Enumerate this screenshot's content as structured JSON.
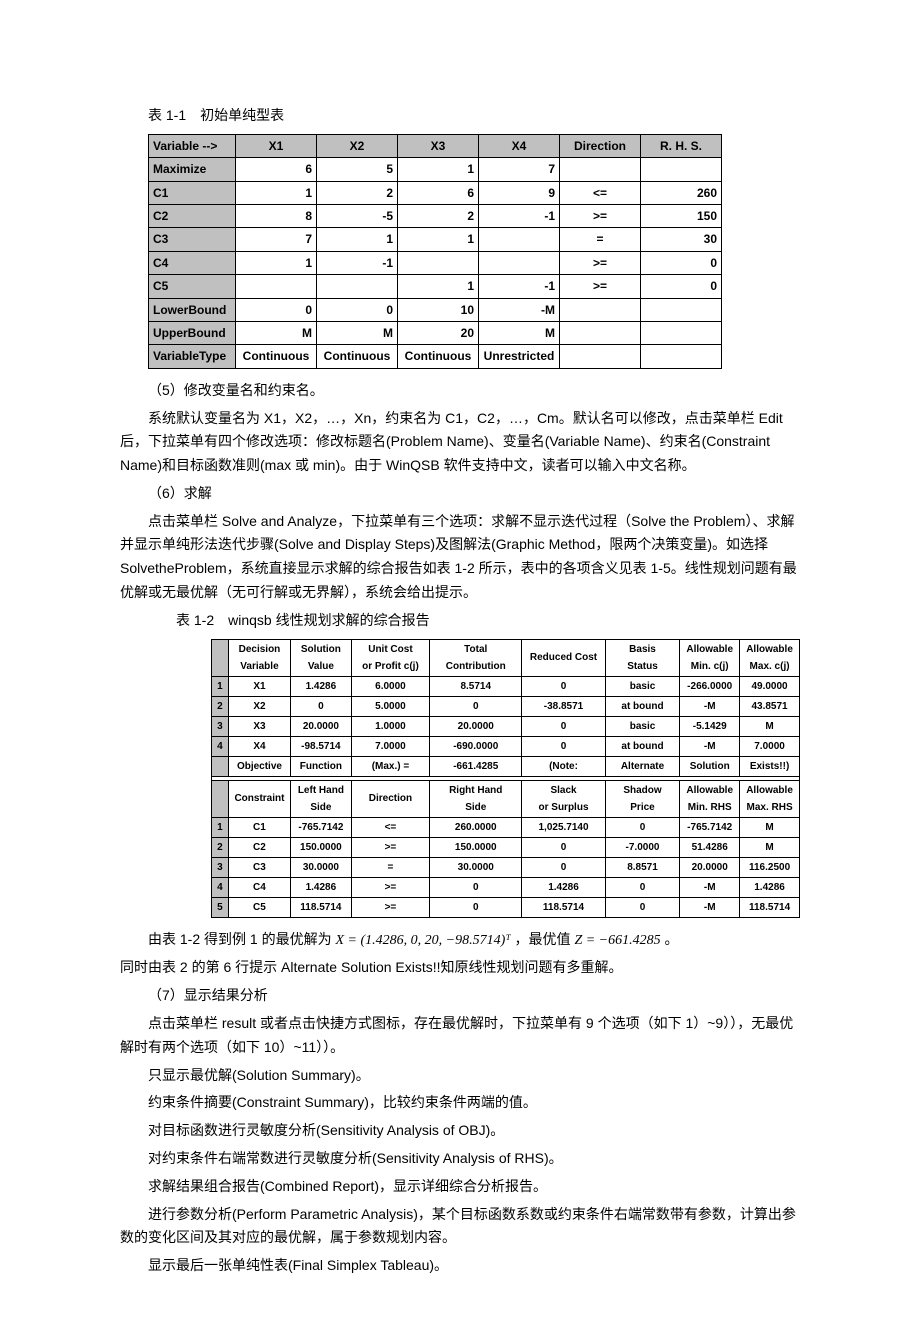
{
  "caption1": "表 1-1　初始单纯型表",
  "t1": {
    "headers": [
      "Variable -->",
      "X1",
      "X2",
      "X3",
      "X4",
      "Direction",
      "R. H. S."
    ],
    "rows": [
      [
        "Maximize",
        "6",
        "5",
        "1",
        "7",
        "",
        ""
      ],
      [
        "C1",
        "1",
        "2",
        "6",
        "9",
        "<=",
        "260"
      ],
      [
        "C2",
        "8",
        "-5",
        "2",
        "-1",
        ">=",
        "150"
      ],
      [
        "C3",
        "7",
        "1",
        "1",
        "",
        "=",
        "30"
      ],
      [
        "C4",
        "1",
        "-1",
        "",
        "",
        ">=",
        "0"
      ],
      [
        "C5",
        "",
        "",
        "1",
        "-1",
        ">=",
        "0"
      ],
      [
        "LowerBound",
        "0",
        "0",
        "10",
        "-M",
        "",
        ""
      ],
      [
        "UpperBound",
        "M",
        "M",
        "20",
        "M",
        "",
        ""
      ],
      [
        "VariableType",
        "Continuous",
        "Continuous",
        "Continuous",
        "Unrestricted",
        "",
        ""
      ]
    ]
  },
  "para5": "（5）修改变量名和约束名。",
  "para5b": "系统默认变量名为 X1，X2，…，Xn，约束名为 C1，C2，…，Cm。默认名可以修改，点击菜单栏 Edit 后，下拉菜单有四个修改选项：修改标题名(Problem Name)、变量名(Variable Name)、约束名(Constraint Name)和目标函数准则(max 或 min)。由于 WinQSB 软件支持中文，读者可以输入中文名称。",
  "para6": "（6）求解",
  "para6b": "点击菜单栏 Solve and Analyze，下拉菜单有三个选项：求解不显示迭代过程（Solve the Problem）、求解并显示单纯形法迭代步骤(Solve and Display Steps)及图解法(Graphic Method，限两个决策变量)。如选择 SolvetheProblem，系统直接显示求解的综合报告如表 1-2 所示，表中的各项含义见表 1-5。线性规划问题有最优解或无最优解（无可行解或无界解），系统会给出提示。",
  "caption2": "表 1-2　winqsb 线性规划求解的综合报告",
  "t2a": {
    "headers": [
      "",
      "Decision Variable",
      "Solution Value",
      "Unit Cost or Profit c(j)",
      "Total Contribution",
      "Reduced Cost",
      "Basis Status",
      "Allowable Min. c(j)",
      "Allowable Max. c(j)"
    ],
    "rows": [
      [
        "1",
        "X1",
        "1.4286",
        "6.0000",
        "8.5714",
        "0",
        "basic",
        "-266.0000",
        "49.0000"
      ],
      [
        "2",
        "X2",
        "0",
        "5.0000",
        "0",
        "-38.8571",
        "at bound",
        "-M",
        "43.8571"
      ],
      [
        "3",
        "X3",
        "20.0000",
        "1.0000",
        "20.0000",
        "0",
        "basic",
        "-5.1429",
        "M"
      ],
      [
        "4",
        "X4",
        "-98.5714",
        "7.0000",
        "-690.0000",
        "0",
        "at bound",
        "-M",
        "7.0000"
      ],
      [
        "",
        "Objective",
        "Function",
        "(Max.) =",
        "-661.4285",
        "(Note:",
        "Alternate",
        "Solution",
        "Exists!!)"
      ]
    ]
  },
  "t2b": {
    "headers": [
      "",
      "Constraint",
      "Left Hand Side",
      "Direction",
      "Right Hand Side",
      "Slack or Surplus",
      "Shadow Price",
      "Allowable Min. RHS",
      "Allowable Max. RHS"
    ],
    "rows": [
      [
        "1",
        "C1",
        "-765.7142",
        "<=",
        "260.0000",
        "1,025.7140",
        "0",
        "-765.7142",
        "M"
      ],
      [
        "2",
        "C2",
        "150.0000",
        ">=",
        "150.0000",
        "0",
        "-7.0000",
        "51.4286",
        "M"
      ],
      [
        "3",
        "C3",
        "30.0000",
        "=",
        "30.0000",
        "0",
        "8.8571",
        "20.0000",
        "116.2500"
      ],
      [
        "4",
        "C4",
        "1.4286",
        ">=",
        "0",
        "1.4286",
        "0",
        "-M",
        "1.4286"
      ],
      [
        "5",
        "C5",
        "118.5714",
        ">=",
        "0",
        "118.5714",
        "0",
        "-M",
        "118.5714"
      ]
    ]
  },
  "para7a_pre": "由表 1-2 得到例 1 的最优解为 ",
  "para7a_math": "X = (1.4286, 0, 20, −98.5714)ᵀ",
  "para7a_mid": "，最优值 ",
  "para7a_math2": "Z = −661.4285",
  "para7a_end": " 。",
  "para7b": "同时由表 2 的第 6 行提示 Alternate Solution Exists!!知原线性规划问题有多重解。",
  "para7": "（7）显示结果分析",
  "para7c": "点击菜单栏 result 或者点击快捷方式图标，存在最优解时，下拉菜单有 9 个选项（如下 1）~9）），无最优解时有两个选项（如下 10）~11））。",
  "li1": "只显示最优解(Solution Summary)。",
  "li2": "约束条件摘要(Constraint Summary)，比较约束条件两端的值。",
  "li3": "对目标函数进行灵敏度分析(Sensitivity Analysis of OBJ)。",
  "li4": "对约束条件右端常数进行灵敏度分析(Sensitivity Analysis of RHS)。",
  "li5": "求解结果组合报告(Combined Report)，显示详细综合分析报告。",
  "li6": "进行参数分析(Perform Parametric Analysis)，某个目标函数系数或约束条件右端常数带有参数，计算出参数的变化区间及其对应的最优解，属于参数规划内容。",
  "li7": "显示最后一张单纯性表(Final Simplex Tableau)。"
}
